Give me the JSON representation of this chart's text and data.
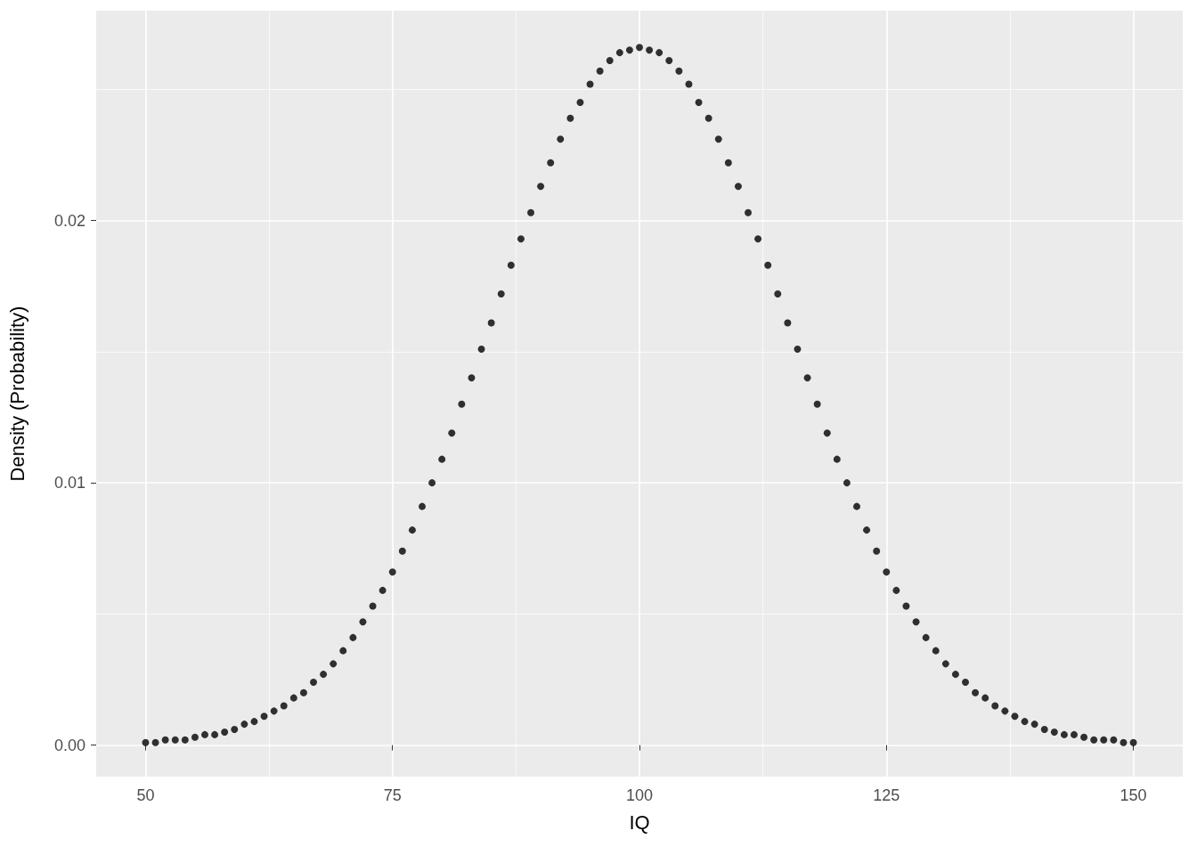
{
  "chart_data": {
    "type": "scatter",
    "xlabel": "IQ",
    "ylabel": "Density (Probability)",
    "x": [
      50,
      51,
      52,
      53,
      54,
      55,
      56,
      57,
      58,
      59,
      60,
      61,
      62,
      63,
      64,
      65,
      66,
      67,
      68,
      69,
      70,
      71,
      72,
      73,
      74,
      75,
      76,
      77,
      78,
      79,
      80,
      81,
      82,
      83,
      84,
      85,
      86,
      87,
      88,
      89,
      90,
      91,
      92,
      93,
      94,
      95,
      96,
      97,
      98,
      99,
      100,
      101,
      102,
      103,
      104,
      105,
      106,
      107,
      108,
      109,
      110,
      111,
      112,
      113,
      114,
      115,
      116,
      117,
      118,
      119,
      120,
      121,
      122,
      123,
      124,
      125,
      126,
      127,
      128,
      129,
      130,
      131,
      132,
      133,
      134,
      135,
      136,
      137,
      138,
      139,
      140,
      141,
      142,
      143,
      144,
      145,
      146,
      147,
      148,
      149,
      150
    ],
    "series": [
      {
        "color": "#000000",
        "values": [
          0.0001,
          0.0001,
          0.0002,
          0.0002,
          0.0002,
          0.0003,
          0.0004,
          0.0004,
          0.0005,
          0.0006,
          0.0008,
          0.0009,
          0.0011,
          0.0013,
          0.0015,
          0.0018,
          0.002,
          0.0024,
          0.0027,
          0.0031,
          0.0036,
          0.0041,
          0.0047,
          0.0053,
          0.0059,
          0.0066,
          0.0074,
          0.0082,
          0.0091,
          0.01,
          0.0109,
          0.0119,
          0.013,
          0.014,
          0.0151,
          0.0161,
          0.0172,
          0.0183,
          0.0193,
          0.0203,
          0.0213,
          0.0222,
          0.0231,
          0.0239,
          0.0245,
          0.0252,
          0.0257,
          0.0261,
          0.0264,
          0.0265,
          0.0266,
          0.0265,
          0.0264,
          0.0261,
          0.0257,
          0.0252,
          0.0245,
          0.0239,
          0.0231,
          0.0222,
          0.0213,
          0.0203,
          0.0193,
          0.0183,
          0.0172,
          0.0161,
          0.0151,
          0.014,
          0.013,
          0.0119,
          0.0109,
          0.01,
          0.0091,
          0.0082,
          0.0074,
          0.0066,
          0.0059,
          0.0053,
          0.0047,
          0.0041,
          0.0036,
          0.0031,
          0.0027,
          0.0024,
          0.002,
          0.0018,
          0.0015,
          0.0013,
          0.0011,
          0.0009,
          0.0008,
          0.0006,
          0.0005,
          0.0004,
          0.0004,
          0.0003,
          0.0002,
          0.0002,
          0.0002,
          0.0001,
          0.0001
        ]
      }
    ],
    "xlim": [
      45,
      155
    ],
    "xticks": [
      50,
      75,
      100,
      125,
      150
    ],
    "ylim": [
      -0.0012,
      0.028
    ],
    "yticks": [
      {
        "value": 0,
        "label": "0.00"
      },
      {
        "value": 0.01,
        "label": "0.01"
      },
      {
        "value": 0.02,
        "label": "0.02"
      }
    ],
    "grid": true,
    "marker": "circle"
  }
}
